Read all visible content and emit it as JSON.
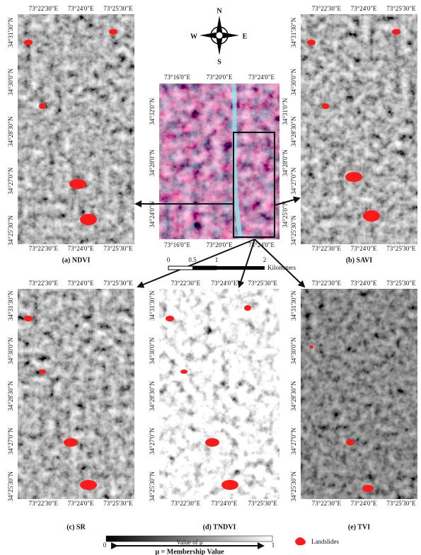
{
  "compass": {
    "n": "N",
    "s": "S",
    "e": "E",
    "w": "W"
  },
  "center_map": {
    "lon": [
      "73°16'0\"E",
      "73°20'0\"E",
      "73°24'0\"E"
    ],
    "lat_left": [
      "34°32'0\"N",
      "34°28'0\"N",
      "34°24'0\"N"
    ],
    "lat_right": [
      "34°31'0\"N",
      "34°28'0\"N",
      "34°25'0\"N"
    ]
  },
  "scale_bar": {
    "ticks": [
      "0",
      "0.5",
      "1",
      "2"
    ],
    "unit": "Kilometers"
  },
  "panel_grid": {
    "lon": [
      "73°22'30\"E",
      "73°24'0\"E",
      "73°25'30\"E"
    ],
    "lat": [
      "34°31'30\"N",
      "34°30'0\"N",
      "34°28'30\"N",
      "34°27'0\"N",
      "34°25'30\"N"
    ]
  },
  "panels": [
    {
      "caption": "(a) NDVI"
    },
    {
      "caption": "(b) SAVI"
    },
    {
      "caption": "(c) SR"
    },
    {
      "caption": "(d) TNDVI"
    },
    {
      "caption": "(e) TVI"
    }
  ],
  "colorbar": {
    "min": "0",
    "max": "1",
    "title": "Value of μ",
    "note": "μ = Membership Value"
  },
  "legend": {
    "label": "Landslides"
  }
}
